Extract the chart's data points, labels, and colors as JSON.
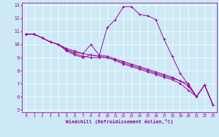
{
  "xlabel": "Windchill (Refroidissement éolien,°C)",
  "background_color": "#cce9f5",
  "line_color": "#990099",
  "xlim": [
    -0.5,
    23.5
  ],
  "ylim": [
    4.8,
    13.2
  ],
  "xticks": [
    0,
    1,
    2,
    3,
    4,
    5,
    6,
    7,
    8,
    9,
    10,
    11,
    12,
    13,
    14,
    15,
    16,
    17,
    18,
    19,
    20,
    21,
    22,
    23
  ],
  "yticks": [
    5,
    6,
    7,
    8,
    9,
    10,
    11,
    12,
    13
  ],
  "series1": [
    [
      0,
      10.8
    ],
    [
      1,
      10.8
    ],
    [
      2,
      10.5
    ],
    [
      3,
      10.2
    ],
    [
      4,
      10.0
    ],
    [
      5,
      9.7
    ],
    [
      6,
      9.5
    ],
    [
      7,
      9.3
    ],
    [
      8,
      9.2
    ],
    [
      9,
      9.1
    ],
    [
      10,
      11.3
    ],
    [
      11,
      11.9
    ],
    [
      12,
      12.9
    ],
    [
      13,
      12.9
    ],
    [
      14,
      12.3
    ],
    [
      15,
      12.2
    ],
    [
      16,
      11.9
    ],
    [
      17,
      10.4
    ],
    [
      18,
      9.1
    ],
    [
      19,
      7.8
    ],
    [
      20,
      6.9
    ],
    [
      21,
      6.0
    ],
    [
      22,
      6.9
    ],
    [
      23,
      5.4
    ]
  ],
  "series2": [
    [
      0,
      10.8
    ],
    [
      1,
      10.8
    ],
    [
      2,
      10.5
    ],
    [
      3,
      10.2
    ],
    [
      4,
      10.0
    ],
    [
      5,
      9.6
    ],
    [
      6,
      9.3
    ],
    [
      7,
      9.1
    ],
    [
      8,
      9.0
    ],
    [
      9,
      9.0
    ],
    [
      10,
      9.0
    ],
    [
      11,
      8.8
    ],
    [
      12,
      8.6
    ],
    [
      13,
      8.4
    ],
    [
      14,
      8.2
    ],
    [
      15,
      8.0
    ],
    [
      16,
      7.8
    ],
    [
      17,
      7.6
    ],
    [
      18,
      7.4
    ],
    [
      19,
      7.2
    ],
    [
      20,
      7.0
    ],
    [
      21,
      6.0
    ],
    [
      22,
      6.9
    ],
    [
      23,
      5.4
    ]
  ],
  "series3": [
    [
      0,
      10.8
    ],
    [
      1,
      10.8
    ],
    [
      2,
      10.5
    ],
    [
      3,
      10.2
    ],
    [
      4,
      10.0
    ],
    [
      5,
      9.5
    ],
    [
      6,
      9.2
    ],
    [
      7,
      9.0
    ],
    [
      8,
      9.2
    ],
    [
      9,
      9.1
    ],
    [
      10,
      9.0
    ],
    [
      11,
      8.8
    ],
    [
      12,
      8.5
    ],
    [
      13,
      8.3
    ],
    [
      14,
      8.1
    ],
    [
      15,
      7.9
    ],
    [
      16,
      7.7
    ],
    [
      17,
      7.5
    ],
    [
      18,
      7.3
    ],
    [
      19,
      7.0
    ],
    [
      20,
      6.5
    ],
    [
      21,
      6.0
    ],
    [
      22,
      6.9
    ],
    [
      23,
      5.4
    ]
  ],
  "series4": [
    [
      0,
      10.8
    ],
    [
      1,
      10.8
    ],
    [
      2,
      10.5
    ],
    [
      3,
      10.2
    ],
    [
      4,
      10.0
    ],
    [
      5,
      9.6
    ],
    [
      6,
      9.4
    ],
    [
      7,
      9.3
    ],
    [
      8,
      10.0
    ],
    [
      9,
      9.2
    ],
    [
      10,
      9.1
    ],
    [
      11,
      8.9
    ],
    [
      12,
      8.7
    ],
    [
      13,
      8.5
    ],
    [
      14,
      8.3
    ],
    [
      15,
      8.1
    ],
    [
      16,
      7.9
    ],
    [
      17,
      7.7
    ],
    [
      18,
      7.5
    ],
    [
      19,
      7.2
    ],
    [
      20,
      6.8
    ],
    [
      21,
      6.0
    ],
    [
      22,
      6.9
    ],
    [
      23,
      5.4
    ]
  ]
}
